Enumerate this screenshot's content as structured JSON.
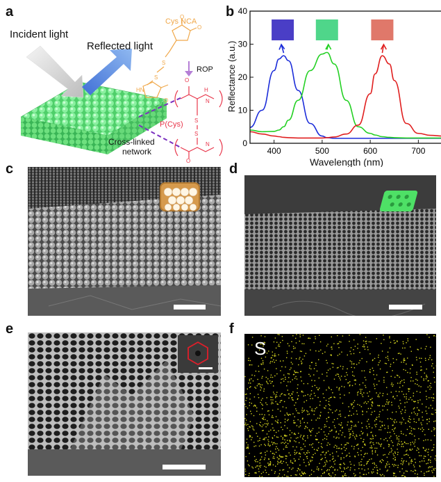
{
  "panel_labels": {
    "a": "a",
    "b": "b",
    "c": "c",
    "d": "d",
    "e": "e",
    "f": "f"
  },
  "panel_a": {
    "incident_light": "Incident light",
    "reflected_light": "Reflected light",
    "monomer": "Cys NCA",
    "rop": "ROP",
    "polymer": "P(Cys)",
    "network_line1": "Cross-linked",
    "network_line2": "network",
    "colors": {
      "film": "#6ee88a",
      "monomer": "#f0a84a",
      "polymer": "#e8354a",
      "arrow_rop": "#b57fd6"
    }
  },
  "chart_data": {
    "type": "line",
    "xlabel": "Wavelength (nm)",
    "ylabel": "Reflectance (a.u.)",
    "xlim": [
      350,
      750
    ],
    "ylim": [
      0,
      40
    ],
    "xticks": [
      400,
      500,
      600,
      700
    ],
    "yticks": [
      0,
      10,
      20,
      30,
      40
    ],
    "x": [
      350,
      375,
      400,
      410,
      420,
      430,
      450,
      475,
      500,
      510,
      525,
      550,
      575,
      600,
      610,
      625,
      640,
      650,
      675,
      700,
      725,
      750
    ],
    "series": [
      {
        "color": "#1a2bd9",
        "values": [
          4.8,
          10,
          22,
          25.5,
          26.5,
          25,
          16,
          6,
          2.2,
          1.7,
          1.5,
          1.5,
          1.5,
          1.5,
          1.5,
          1.5,
          1.5,
          1.5,
          1.5,
          1.5,
          1.5,
          1.5
        ]
      },
      {
        "color": "#22d022",
        "values": [
          4,
          3.5,
          3.6,
          4,
          5,
          7,
          13,
          22,
          27,
          27.5,
          24,
          13,
          5,
          3,
          2.5,
          2,
          1.8,
          1.7,
          1.6,
          1.6,
          1.6,
          1.6
        ]
      },
      {
        "color": "#e01e1e",
        "values": [
          3.5,
          2.8,
          2.2,
          2,
          1.8,
          1.7,
          1.6,
          1.6,
          1.6,
          1.7,
          1.9,
          2.8,
          5.5,
          15,
          21,
          26.5,
          24,
          19,
          6,
          3,
          2.4,
          2.2
        ]
      }
    ],
    "swatches": [
      "#4a3ec6",
      "#4fd68a",
      "#e0786a"
    ],
    "grid": false
  },
  "panel_f": {
    "element": "S"
  }
}
